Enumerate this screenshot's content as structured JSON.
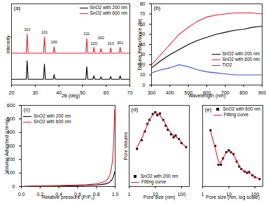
{
  "chart_data": [
    {
      "type": "line",
      "title": "(a)",
      "x_label": "2θ (deg)",
      "y_label": "Intensity",
      "x": [
        20,
        26.2,
        26.6,
        27.0,
        33.5,
        33.9,
        34.3,
        37.6,
        38.0,
        38.4,
        51.4,
        51.8,
        52.2,
        54.4,
        54.8,
        55.2,
        57.4,
        57.8,
        58.2,
        61.5,
        61.9,
        62.3,
        65.5,
        65.9,
        66.3,
        70
      ],
      "series": [
        {
          "name": "SnO2 with 200 nm",
          "color": "#000000",
          "values": [
            1.0,
            1.0,
            4.2,
            1.0,
            1.0,
            3.6,
            1.0,
            1.0,
            1.8,
            1.0,
            1.0,
            3.2,
            1.0,
            1.0,
            1.6,
            1.0,
            1.0,
            1.4,
            1.0,
            1.0,
            1.5,
            1.0,
            1.0,
            1.6,
            1.0,
            1.0
          ]
        },
        {
          "name": "SnO2 with 600 nm",
          "color": "#e8202a",
          "values": [
            5.5,
            5.5,
            8.8,
            5.5,
            5.5,
            8.3,
            5.5,
            5.5,
            6.6,
            5.5,
            5.5,
            8.0,
            5.5,
            5.5,
            6.5,
            5.5,
            5.5,
            6.3,
            5.5,
            5.5,
            6.4,
            5.5,
            5.5,
            6.5,
            5.5,
            5.5
          ]
        }
      ],
      "annotations": [
        {
          "text": "110",
          "x": 26.6,
          "y": 9.4
        },
        {
          "text": "101",
          "x": 33.9,
          "y": 8.9
        },
        {
          "text": "200",
          "x": 38.0,
          "y": 7.2
        },
        {
          "text": "211",
          "x": 51.8,
          "y": 8.6
        },
        {
          "text": "220",
          "x": 54.8,
          "y": 7.0
        },
        {
          "text": "002",
          "x": 57.8,
          "y": 7.9
        },
        {
          "text": "310",
          "x": 61.9,
          "y": 7.0
        },
        {
          "text": "301",
          "x": 65.9,
          "y": 7.1
        }
      ],
      "xlim": [
        20,
        70
      ],
      "xticks": [
        20,
        30,
        40,
        50,
        60,
        70
      ],
      "ylim": [
        0,
        14
      ],
      "tick_labels": "x",
      "legend": "upper right"
    },
    {
      "type": "line",
      "title": "(b)",
      "x_label": "Wavelength (nm)",
      "y_label": "Diffuse Reflectance (%)",
      "x": [
        300,
        350,
        400,
        450,
        500,
        550,
        600,
        650,
        700,
        750,
        800,
        850,
        900
      ],
      "series": [
        {
          "name": "SnO2 with 200 nm",
          "color": "#000000",
          "values": [
            17,
            24,
            30,
            35,
            40,
            44,
            47,
            50,
            52,
            54,
            55,
            57,
            58
          ]
        },
        {
          "name": "SnO2 with 600 nm",
          "color": "#e8202a",
          "values": [
            20,
            30,
            40,
            50,
            57,
            63,
            67,
            69,
            70,
            71,
            71,
            71,
            70
          ]
        },
        {
          "name": "TiO2",
          "color": "#3a50d8",
          "values": [
            12,
            15,
            17,
            20,
            18,
            15,
            13,
            12,
            11,
            10,
            10,
            10,
            10
          ]
        }
      ],
      "xlim": [
        300,
        900
      ],
      "xticks": [
        300,
        400,
        500,
        600,
        700,
        800,
        900
      ],
      "ylim": [
        0,
        80
      ],
      "yticks": [
        0,
        10,
        20,
        30,
        40,
        50,
        60,
        70,
        80
      ],
      "legend": "lower right"
    },
    {
      "type": "line",
      "title": "(c)",
      "x_label": "Relative pressure (P/P₀)",
      "y_label": "Volume Adsorbed (cm³/g)",
      "x": [
        0,
        0.1,
        0.2,
        0.3,
        0.4,
        0.5,
        0.6,
        0.7,
        0.8,
        0.85,
        0.9,
        0.93,
        0.95,
        0.97,
        0.98,
        0.99,
        0.995
      ],
      "series": [
        {
          "name": "SnO2 with 200 nm",
          "color": "#000000",
          "values": [
            0,
            2,
            3,
            4,
            5,
            6,
            7,
            9,
            12,
            15,
            20,
            28,
            38,
            55,
            70,
            95,
            110
          ]
        },
        {
          "name": "SnO2 with 600 nm",
          "color": "#e8202a",
          "values": [
            0,
            3,
            5,
            6,
            7,
            9,
            11,
            14,
            20,
            28,
            40,
            65,
            100,
            180,
            280,
            450,
            570
          ]
        }
      ],
      "xlim": [
        0,
        1.0
      ],
      "xticks": [
        {
          "value": 0,
          "label": "0.0"
        },
        {
          "value": 0.2,
          "label": "0.2"
        },
        {
          "value": 0.4,
          "label": "0.4"
        },
        {
          "value": 0.6,
          "label": "0.6"
        },
        {
          "value": 0.8,
          "label": "0.8"
        },
        {
          "value": 1.0,
          "label": "1.0"
        }
      ],
      "ylim": [
        0,
        600
      ],
      "yticks": [
        0,
        100,
        200,
        300,
        400,
        500,
        600
      ],
      "legend": "upper left"
    },
    {
      "type": "scatter",
      "title": "(d)",
      "x_label": "Pore size (nm)",
      "y_label": "Pore Volume",
      "x": [
        2,
        3,
        4,
        5,
        6,
        8,
        10,
        12,
        15,
        20,
        25,
        30,
        40,
        50,
        60,
        80,
        100,
        150
      ],
      "series": [
        {
          "name": "SnO2 with 200 nm",
          "color": "#000000",
          "type": "scatter",
          "marker": "square",
          "values": [
            2.5,
            4.0,
            5.5,
            6.8,
            7.5,
            8.5,
            8.8,
            8.3,
            8.6,
            7.5,
            6.5,
            5.8,
            5.0,
            4.5,
            4.8,
            4.2,
            3.5,
            2.8
          ]
        },
        {
          "name": "Fitting curve",
          "color": "#e8202a",
          "type": "line",
          "values": [
            2.8,
            4.3,
            5.6,
            6.7,
            7.5,
            8.4,
            8.7,
            8.6,
            8.3,
            7.5,
            6.7,
            6.0,
            5.2,
            4.8,
            4.6,
            4.2,
            3.6,
            2.8
          ]
        }
      ],
      "log": "x",
      "xlim": [
        1,
        200
      ],
      "xticks": [
        1,
        10,
        100
      ],
      "ylim": [
        -4,
        10
      ],
      "tick_labels": "x",
      "legend": "lower left"
    },
    {
      "type": "scatter",
      "title": "(e)",
      "x_label": "Pore size (nm, log scale)",
      "x": [
        2,
        3,
        4,
        5,
        6,
        8,
        10,
        12,
        15,
        20,
        25,
        30,
        40,
        50,
        60,
        80,
        100,
        150
      ],
      "series": [
        {
          "name": "SnO2 with 600 nm",
          "color": "#000000",
          "type": "scatter",
          "marker": "square",
          "values": [
            9.0,
            6.5,
            3.5,
            3.5,
            4.5,
            5.5,
            5.8,
            5.5,
            5.2,
            4.0,
            3.2,
            2.8,
            2.4,
            2.2,
            2.3,
            1.8,
            1.5,
            1.2
          ]
        },
        {
          "name": "Fitting curve",
          "color": "#e8202a",
          "type": "line",
          "values": [
            8.8,
            6.2,
            4.0,
            3.8,
            4.6,
            5.4,
            5.7,
            5.6,
            5.1,
            4.1,
            3.3,
            2.8,
            2.4,
            2.3,
            2.2,
            1.9,
            1.5,
            1.2
          ]
        }
      ],
      "log": "x",
      "xlim": [
        1,
        200
      ],
      "xticks": [
        1,
        10,
        100
      ],
      "ylim": [
        0,
        13
      ],
      "tick_labels": "x",
      "legend": "upper right"
    }
  ]
}
